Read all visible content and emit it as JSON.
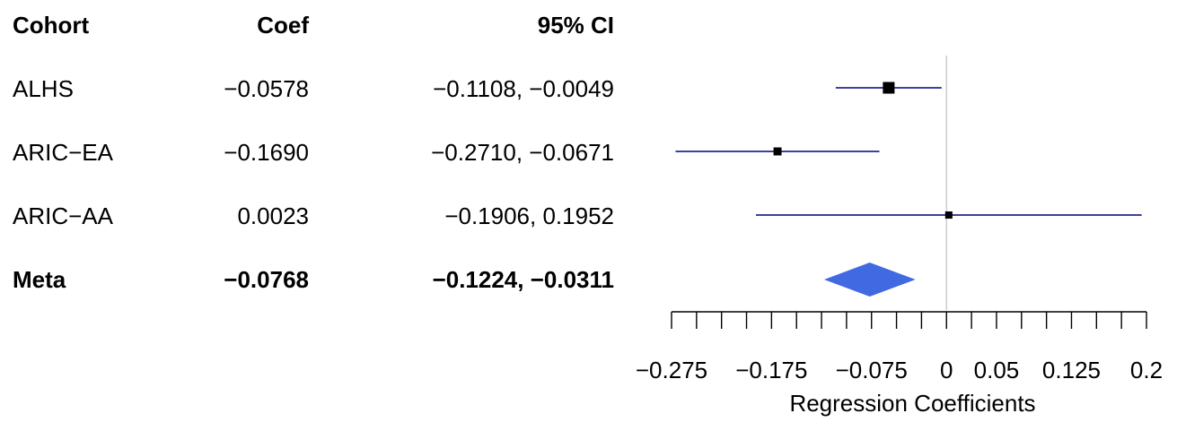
{
  "table": {
    "headers": {
      "cohort": "Cohort",
      "coef": "Coef",
      "ci": "95% CI"
    },
    "rows": [
      {
        "cohort": "ALHS",
        "coef": "−0.0578",
        "ci": "−0.1108, −0.0049"
      },
      {
        "cohort": "ARIC−EA",
        "coef": "−0.1690",
        "ci": "−0.2710, −0.0671"
      },
      {
        "cohort": "ARIC−AA",
        "coef": "0.0023",
        "ci": "−0.1906, 0.1952"
      }
    ],
    "meta": {
      "cohort": "Meta",
      "coef": "−0.0768",
      "ci": "−0.1224, −0.0311"
    }
  },
  "chart_data": {
    "type": "forest",
    "xlabel": "Regression Coefficients",
    "xlim": [
      -0.275,
      0.2
    ],
    "reference_line": 0,
    "ticks": [
      -0.275,
      -0.25,
      -0.225,
      -0.2,
      -0.175,
      -0.15,
      -0.125,
      -0.1,
      -0.075,
      -0.05,
      -0.025,
      0,
      0.025,
      0.05,
      0.075,
      0.1,
      0.125,
      0.15,
      0.175,
      0.2
    ],
    "tick_labels": [
      {
        "value": -0.275,
        "label": "−0.275"
      },
      {
        "value": -0.175,
        "label": "−0.175"
      },
      {
        "value": -0.075,
        "label": "−0.075"
      },
      {
        "value": 0,
        "label": "0"
      },
      {
        "value": 0.05,
        "label": "0.05"
      },
      {
        "value": 0.125,
        "label": "0.125"
      },
      {
        "value": 0.2,
        "label": "0.2"
      }
    ],
    "studies": [
      {
        "name": "ALHS",
        "est": -0.0578,
        "lo": -0.1108,
        "hi": -0.0049,
        "weight": 1.0
      },
      {
        "name": "ARIC−EA",
        "est": -0.169,
        "lo": -0.271,
        "hi": -0.0671,
        "weight": 0.55
      },
      {
        "name": "ARIC−AA",
        "est": 0.0023,
        "lo": -0.1906,
        "hi": 0.1952,
        "weight": 0.45
      }
    ],
    "summary": {
      "name": "Meta",
      "est": -0.0768,
      "lo": -0.1224,
      "hi": -0.0311
    },
    "colors": {
      "ci_line": "#000080",
      "point": "#000000",
      "summary": "#4169E1",
      "reference": "#cccccc",
      "axis": "#000000"
    }
  }
}
